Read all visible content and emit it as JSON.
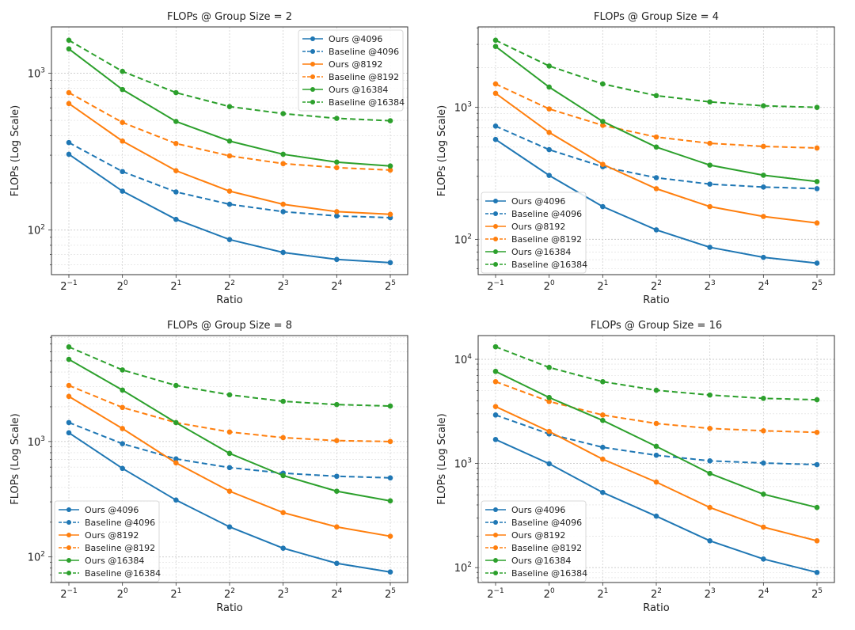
{
  "chart_data": [
    {
      "type": "line",
      "title": "FLOPs @ Group Size = 2",
      "xlabel": "Ratio",
      "ylabel": "FLOPs (Log Scale)",
      "yscale": "log",
      "ylim": [
        52,
        1970
      ],
      "y_ticks": [
        {
          "value": 100,
          "base": "10",
          "exp": "2"
        },
        {
          "value": 1000,
          "base": "10",
          "exp": "3"
        }
      ],
      "x": [
        0.5,
        1,
        2,
        4,
        8,
        16,
        32
      ],
      "x_tick_labels": [
        {
          "base": "2",
          "exp": "−1"
        },
        {
          "base": "2",
          "exp": "0"
        },
        {
          "base": "2",
          "exp": "1"
        },
        {
          "base": "2",
          "exp": "2"
        },
        {
          "base": "2",
          "exp": "3"
        },
        {
          "base": "2",
          "exp": "4"
        },
        {
          "base": "2",
          "exp": "5"
        }
      ],
      "grid": true,
      "legend_position": "upper-right",
      "series": [
        {
          "name": "Ours @4096",
          "color": "#1f77b4",
          "style": "solid",
          "values": [
            304,
            177,
            117,
            87,
            72,
            65,
            62
          ]
        },
        {
          "name": "Baseline @4096",
          "color": "#1f77b4",
          "style": "dashed",
          "values": [
            361,
            236,
            175,
            146,
            131,
            123,
            120
          ]
        },
        {
          "name": "Ours @8192",
          "color": "#ff7f0e",
          "style": "solid",
          "values": [
            640,
            369,
            239,
            177,
            146,
            131,
            126
          ]
        },
        {
          "name": "Baseline @8192",
          "color": "#ff7f0e",
          "style": "dashed",
          "values": [
            751,
            485,
            356,
            297,
            265,
            250,
            241
          ]
        },
        {
          "name": "Ours @16384",
          "color": "#2ca02c",
          "style": "solid",
          "values": [
            1427,
            786,
            492,
            369,
            304,
            271,
            256
          ]
        },
        {
          "name": "Baseline @16384",
          "color": "#2ca02c",
          "style": "dashed",
          "values": [
            1620,
            1026,
            751,
            612,
            552,
            515,
            497
          ]
        }
      ]
    },
    {
      "type": "line",
      "title": "FLOPs @ Group Size = 4",
      "xlabel": "Ratio",
      "ylabel": "FLOPs (Log Scale)",
      "yscale": "log",
      "ylim": [
        54,
        4070
      ],
      "y_ticks": [
        {
          "value": 100,
          "base": "10",
          "exp": "2"
        },
        {
          "value": 1000,
          "base": "10",
          "exp": "3"
        }
      ],
      "x": [
        0.5,
        1,
        2,
        4,
        8,
        16,
        32
      ],
      "x_tick_labels": [
        {
          "base": "2",
          "exp": "−1"
        },
        {
          "base": "2",
          "exp": "0"
        },
        {
          "base": "2",
          "exp": "1"
        },
        {
          "base": "2",
          "exp": "2"
        },
        {
          "base": "2",
          "exp": "3"
        },
        {
          "base": "2",
          "exp": "4"
        },
        {
          "base": "2",
          "exp": "5"
        }
      ],
      "grid": true,
      "legend_position": "lower-left",
      "series": [
        {
          "name": "Ours @4096",
          "color": "#1f77b4",
          "style": "solid",
          "values": [
            571,
            305,
            177,
            118,
            87,
            73,
            66
          ]
        },
        {
          "name": "Baseline @4096",
          "color": "#1f77b4",
          "style": "dashed",
          "values": [
            721,
            478,
            355,
            293,
            262,
            249,
            242
          ]
        },
        {
          "name": "Ours @8192",
          "color": "#ff7f0e",
          "style": "solid",
          "values": [
            1278,
            646,
            370,
            242,
            177,
            149,
            133
          ]
        },
        {
          "name": "Baseline @8192",
          "color": "#ff7f0e",
          "style": "dashed",
          "values": [
            1505,
            973,
            731,
            596,
            534,
            506,
            492
          ]
        },
        {
          "name": "Ours @16384",
          "color": "#2ca02c",
          "style": "solid",
          "values": [
            2895,
            1425,
            782,
            500,
            365,
            306,
            274
          ]
        },
        {
          "name": "Baseline @16384",
          "color": "#2ca02c",
          "style": "dashed",
          "values": [
            3225,
            2058,
            1505,
            1227,
            1100,
            1027,
            1000
          ]
        }
      ]
    },
    {
      "type": "line",
      "title": "FLOPs @ Group Size = 8",
      "xlabel": "Ratio",
      "ylabel": "FLOPs (Log Scale)",
      "yscale": "log",
      "ylim": [
        60,
        8280
      ],
      "y_ticks": [
        {
          "value": 100,
          "base": "10",
          "exp": "2"
        },
        {
          "value": 1000,
          "base": "10",
          "exp": "3"
        }
      ],
      "x": [
        0.5,
        1,
        2,
        4,
        8,
        16,
        32
      ],
      "x_tick_labels": [
        {
          "base": "2",
          "exp": "−1"
        },
        {
          "base": "2",
          "exp": "0"
        },
        {
          "base": "2",
          "exp": "1"
        },
        {
          "base": "2",
          "exp": "2"
        },
        {
          "base": "2",
          "exp": "3"
        },
        {
          "base": "2",
          "exp": "4"
        },
        {
          "base": "2",
          "exp": "5"
        }
      ],
      "grid": true,
      "legend_position": "lower-left",
      "series": [
        {
          "name": "Ours @4096",
          "color": "#1f77b4",
          "style": "solid",
          "values": [
            1190,
            585,
            311,
            182,
            119,
            88,
            74
          ]
        },
        {
          "name": "Baseline @4096",
          "color": "#1f77b4",
          "style": "dashed",
          "values": [
            1460,
            957,
            707,
            594,
            532,
            500,
            484
          ]
        },
        {
          "name": "Ours @8192",
          "color": "#ff7f0e",
          "style": "solid",
          "values": [
            2460,
            1295,
            653,
            371,
            242,
            182,
            151
          ]
        },
        {
          "name": "Baseline @8192",
          "color": "#ff7f0e",
          "style": "dashed",
          "values": [
            3060,
            1973,
            1458,
            1210,
            1080,
            1018,
            1000
          ]
        },
        {
          "name": "Ours @16384",
          "color": "#2ca02c",
          "style": "solid",
          "values": [
            5150,
            2790,
            1458,
            789,
            507,
            371,
            306
          ]
        },
        {
          "name": "Baseline @16384",
          "color": "#2ca02c",
          "style": "dashed",
          "values": [
            6600,
            4170,
            3060,
            2540,
            2230,
            2090,
            2030
          ]
        }
      ]
    },
    {
      "type": "line",
      "title": "FLOPs @ Group Size = 16",
      "xlabel": "Ratio",
      "ylabel": "FLOPs (Log Scale)",
      "yscale": "log",
      "ylim": [
        72,
        16900
      ],
      "y_ticks": [
        {
          "value": 100,
          "base": "10",
          "exp": "2"
        },
        {
          "value": 1000,
          "base": "10",
          "exp": "3"
        },
        {
          "value": 10000,
          "base": "10",
          "exp": "4"
        }
      ],
      "x": [
        0.5,
        1,
        2,
        4,
        8,
        16,
        32
      ],
      "x_tick_labels": [
        {
          "base": "2",
          "exp": "−1"
        },
        {
          "base": "2",
          "exp": "0"
        },
        {
          "base": "2",
          "exp": "1"
        },
        {
          "base": "2",
          "exp": "2"
        },
        {
          "base": "2",
          "exp": "3"
        },
        {
          "base": "2",
          "exp": "4"
        },
        {
          "base": "2",
          "exp": "5"
        }
      ],
      "grid": true,
      "legend_position": "lower-left",
      "series": [
        {
          "name": "Ours @4096",
          "color": "#1f77b4",
          "style": "solid",
          "values": [
            1700,
            995,
            527,
            312,
            181,
            121,
            90
          ]
        },
        {
          "name": "Baseline @4096",
          "color": "#1f77b4",
          "style": "dashed",
          "values": [
            2920,
            1920,
            1430,
            1200,
            1060,
            1010,
            975
          ]
        },
        {
          "name": "Ours @8192",
          "color": "#ff7f0e",
          "style": "solid",
          "values": [
            3520,
            2030,
            1100,
            663,
            378,
            245,
            181
          ]
        },
        {
          "name": "Baseline @8192",
          "color": "#ff7f0e",
          "style": "dashed",
          "values": [
            6100,
            3940,
            2920,
            2420,
            2170,
            2060,
            1990
          ]
        },
        {
          "name": "Ours @16384",
          "color": "#2ca02c",
          "style": "solid",
          "values": [
            7660,
            4300,
            2590,
            1460,
            803,
            507,
            378
          ]
        },
        {
          "name": "Baseline @16384",
          "color": "#2ca02c",
          "style": "dashed",
          "values": [
            13200,
            8360,
            6100,
            5050,
            4540,
            4220,
            4090
          ]
        }
      ]
    }
  ]
}
